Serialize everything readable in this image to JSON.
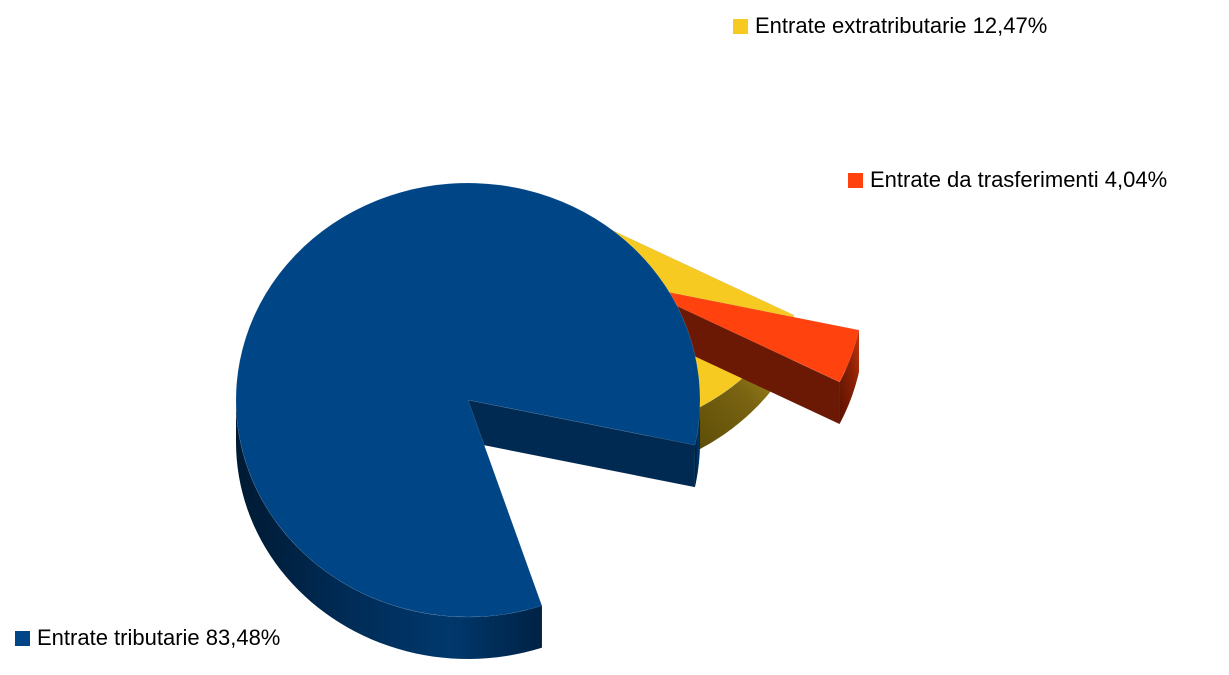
{
  "chart_data": {
    "type": "pie",
    "style": "3d-exploded",
    "legend": "labels-adjacent-to-slices",
    "slices": [
      {
        "label": "Entrate tributarie 83,48%",
        "value": 83.48,
        "color": "#004586"
      },
      {
        "label": "Entrate extratributarie 12,47%",
        "value": 12.47,
        "color": "#F6CA21"
      },
      {
        "label": "Entrate da trasferimenti 4,04%",
        "value": 4.04,
        "color": "#FF420E"
      }
    ]
  }
}
